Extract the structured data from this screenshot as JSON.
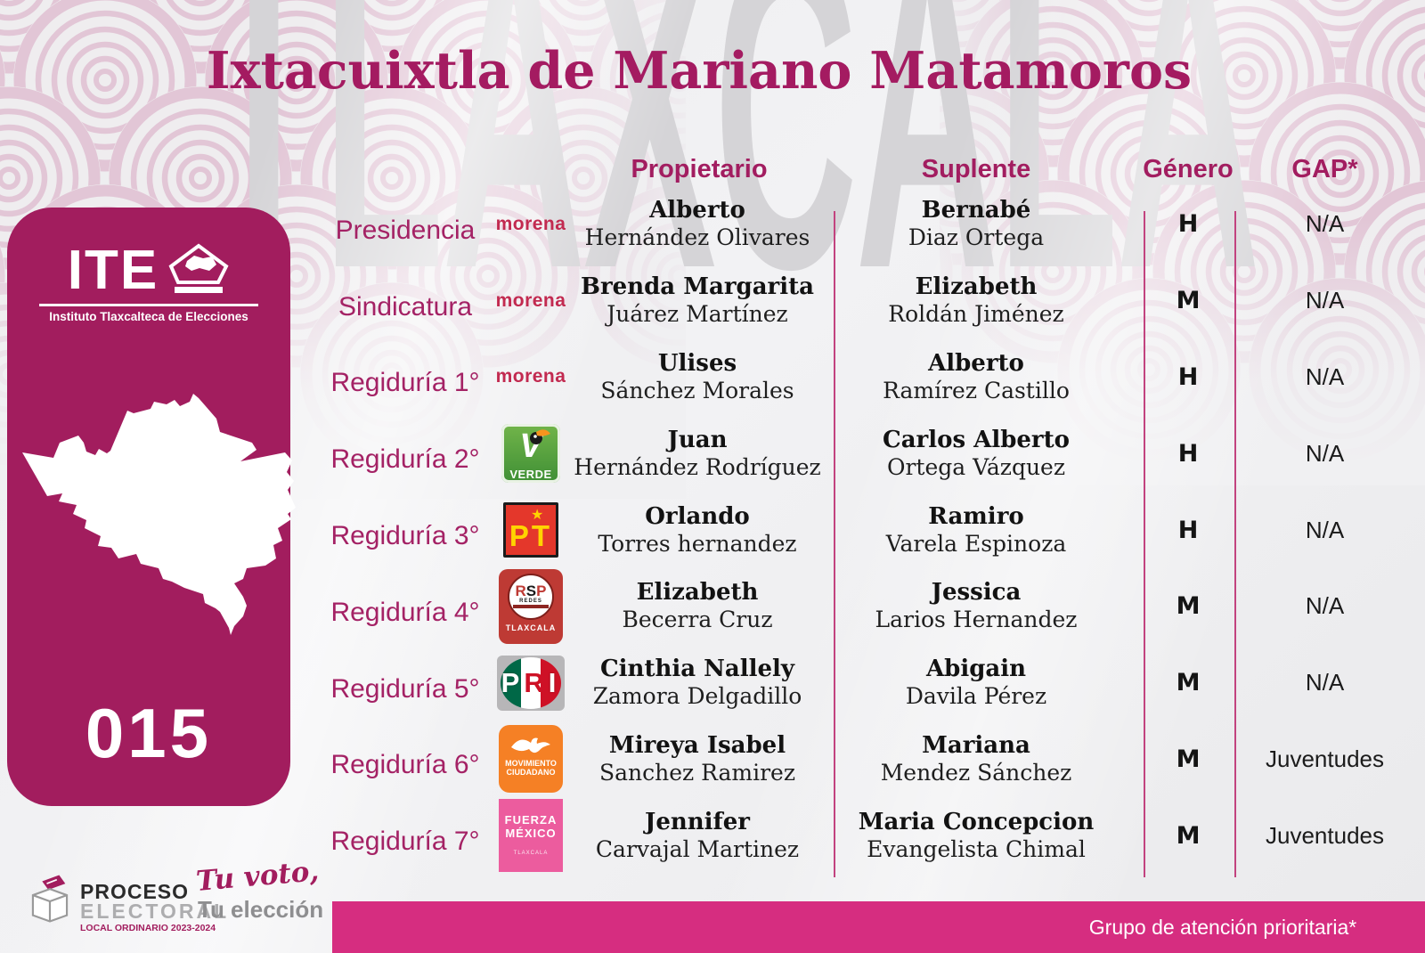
{
  "page": {
    "title": "Ixtacuixtla de Mariano Matamoros",
    "watermark": "TLAXCALA"
  },
  "sidebar": {
    "ite_acronym": "ITE",
    "ite_subtitle": "Instituto Tlaxcalteca de Elecciones",
    "municipality_number": "015"
  },
  "table": {
    "headers": {
      "propietario": "Propietario",
      "suplente": "Suplente",
      "genero": "Género",
      "gap": "GAP*"
    },
    "rows": [
      {
        "cargo": "Presidencia",
        "party": {
          "type": "morena",
          "label": "morena"
        },
        "propietario": {
          "first": "Alberto",
          "last": "Hernández Olivares"
        },
        "suplente": {
          "first": "Bernabé",
          "last": "Diaz Ortega"
        },
        "genero": "H",
        "gap": "N/A"
      },
      {
        "cargo": "Sindicatura",
        "party": {
          "type": "morena",
          "label": "morena"
        },
        "propietario": {
          "first": "Brenda Margarita",
          "last": "Juárez Martínez"
        },
        "suplente": {
          "first": "Elizabeth",
          "last": "Roldán Jiménez"
        },
        "genero": "M",
        "gap": "N/A"
      },
      {
        "cargo": "Regiduría 1°",
        "party": {
          "type": "morena",
          "label": "morena"
        },
        "propietario": {
          "first": "Ulises",
          "last": "Sánchez Morales"
        },
        "suplente": {
          "first": "Alberto",
          "last": "Ramírez Castillo"
        },
        "genero": "H",
        "gap": "N/A"
      },
      {
        "cargo": "Regiduría 2°",
        "party": {
          "type": "verde",
          "letter": "V",
          "label": "VERDE"
        },
        "propietario": {
          "first": "Juan",
          "last": "Hernández Rodríguez"
        },
        "suplente": {
          "first": "Carlos Alberto",
          "last": "Ortega Vázquez"
        },
        "genero": "H",
        "gap": "N/A"
      },
      {
        "cargo": "Regiduría 3°",
        "party": {
          "type": "pt",
          "label": "PT",
          "star": "★"
        },
        "propietario": {
          "first": "Orlando",
          "last": "Torres hernandez"
        },
        "suplente": {
          "first": "Ramiro",
          "last": "Varela Espinoza"
        },
        "genero": "H",
        "gap": "N/A"
      },
      {
        "cargo": "Regiduría 4°",
        "party": {
          "type": "rsp",
          "label": "RSP",
          "sub": "REDES",
          "bottom": "TLAXCALA"
        },
        "propietario": {
          "first": "Elizabeth",
          "last": "Becerra Cruz"
        },
        "suplente": {
          "first": "Jessica",
          "last": "Larios Hernandez"
        },
        "genero": "M",
        "gap": "N/A"
      },
      {
        "cargo": "Regiduría 5°",
        "party": {
          "type": "pri",
          "label": "PRI"
        },
        "propietario": {
          "first": "Cinthia Nallely",
          "last": "Zamora Delgadillo"
        },
        "suplente": {
          "first": "Abigain",
          "last": "Davila Pérez"
        },
        "genero": "M",
        "gap": "N/A"
      },
      {
        "cargo": "Regiduría 6°",
        "party": {
          "type": "mc",
          "label_top": "MOVIMIENTO",
          "label_bottom": "CIUDADANO"
        },
        "propietario": {
          "first": "Mireya Isabel",
          "last": "Sanchez Ramirez"
        },
        "suplente": {
          "first": "Mariana",
          "last": "Mendez Sánchez"
        },
        "genero": "M",
        "gap": "Juventudes"
      },
      {
        "cargo": "Regiduría 7°",
        "party": {
          "type": "fm",
          "line1": "FUERZA",
          "line2": "MÉXICO",
          "bottom": "TLAXCALA"
        },
        "propietario": {
          "first": "Jennifer",
          "last": "Carvajal Martinez"
        },
        "suplente": {
          "first": "Maria Concepcion",
          "last": "Evangelista Chimal"
        },
        "genero": "M",
        "gap": "Juventudes"
      }
    ]
  },
  "footer": {
    "proceso_line1": "PROCESO",
    "proceso_line2": "ELECTORAL",
    "proceso_line3": "LOCAL ORDINARIO 2023-2024",
    "slogan_line1": "Tu voto,",
    "slogan_line2": "Tu elección",
    "priority_note": "Grupo de atención prioritaria*"
  },
  "colors": {
    "brand_magenta": "#A21D5E",
    "bar_pink": "#D62D80",
    "morena_red": "#C22A50",
    "verde_green": "#4FA33F",
    "pt_red": "#E4372B",
    "pt_yellow": "#FFD400",
    "rsp_red": "#BE3A34",
    "pri_green": "#006847",
    "pri_red": "#CE1126",
    "mc_orange": "#F58025",
    "fm_pink": "#EC5C9E",
    "watermark_gray": "#D5D4D7"
  }
}
